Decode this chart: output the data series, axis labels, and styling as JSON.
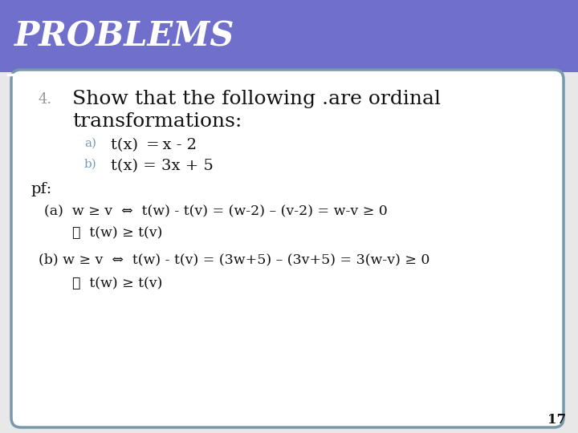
{
  "title": "PROBLEMS",
  "title_bg_color": "#7070CC",
  "title_text_color": "#FFFFFF",
  "slide_bg_color": "#E8E8E8",
  "content_bg_color": "#FFFFFF",
  "border_color": "#7799AA",
  "line_color": "#FFFFFF",
  "number_color": "#999999",
  "label_color": "#7799BB",
  "body_color": "#111111",
  "page_number": "17",
  "item_number": "4.",
  "heading_line1": "Show that the following .are ordinal",
  "heading_line2": "transformations:",
  "sub_a_label": "a)",
  "sub_a_text": "t(x)  = x - 2",
  "sub_b_label": "b)",
  "sub_b_text": "t(x) = 3x + 5",
  "pf_label": "pf:",
  "line_a": "(a)  w ≥ v  ⇔  t(w) - t(v) = (w-2) – (v-2) = w-v ≥ 0",
  "line_a2": "∴  t(w) ≥ t(v)",
  "line_b": "(b) w ≥ v  ⇔  t(w) - t(v) = (3w+5) – (3v+5) = 3(w-v) ≥ 0",
  "line_b2": "∴  t(w) ≥ t(v)"
}
